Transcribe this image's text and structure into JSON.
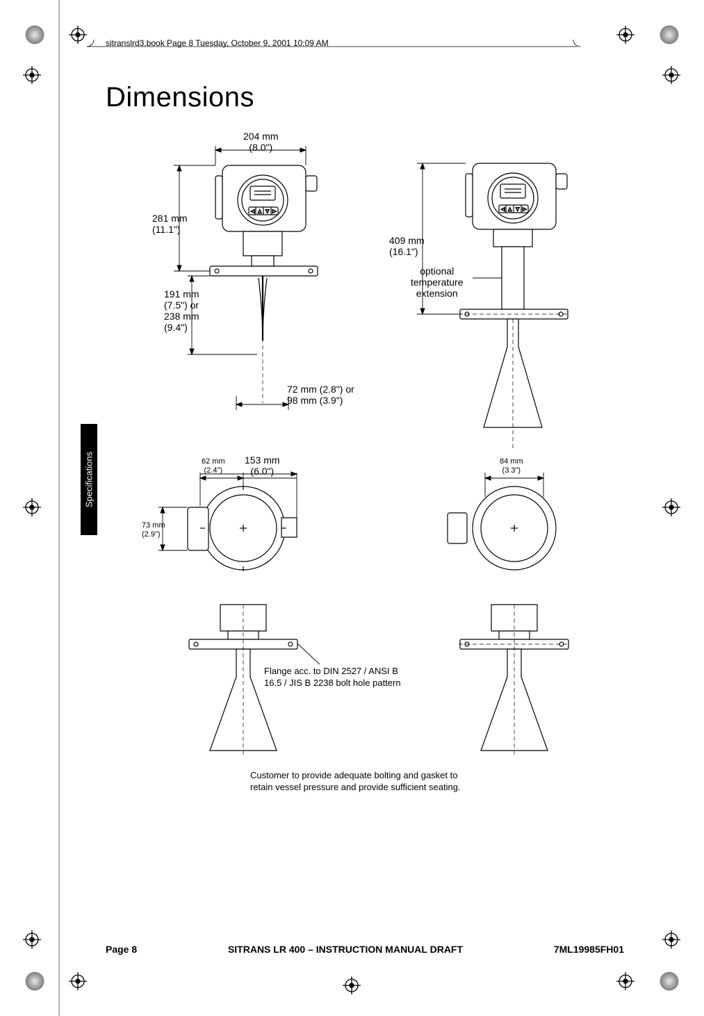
{
  "page": {
    "running_header": "sitranslrd3.book  Page 8  Tuesday, October 9, 2001  10:09 AM",
    "title": "Dimensions",
    "side_tab": "Specifications",
    "footer_left": "Page 8",
    "footer_center": "SITRANS LR 400 – INSTRUCTION MANUAL DRAFT",
    "footer_right": "7ML19985FH01"
  },
  "annotations": {
    "a204": "204 mm\n(8.0\")",
    "a281": "281 mm\n(11.1\")",
    "a191": "191 mm\n(7.5\") or\n238 mm\n(9.4\")",
    "a72": "72 mm (2.8\") or\n98 mm (3.9\")",
    "a409": "409 mm\n(16.1\")",
    "opt_ext": "optional\ntemperature\nextension",
    "a62": "62 mm\n(2.4\")",
    "a153": "153 mm\n(6.0\")",
    "a73": "73 mm\n(2.9\")",
    "a84": "84 mm\n(3.3\")",
    "flange_note": "Flange acc. to DIN 2527 / ANSI B\n16.5 / JIS B 2238 bolt hole pattern",
    "customer_note": "Customer to provide adequate bolting and gasket to\nretain vessel pressure and provide sufficient seating."
  },
  "colors": {
    "ink": "#000000",
    "paper": "#ffffff",
    "light": "#f2f2f2"
  },
  "font": {
    "title_size": 40,
    "body_size": 13,
    "annot_size": 14,
    "small_annot_size": 11
  }
}
